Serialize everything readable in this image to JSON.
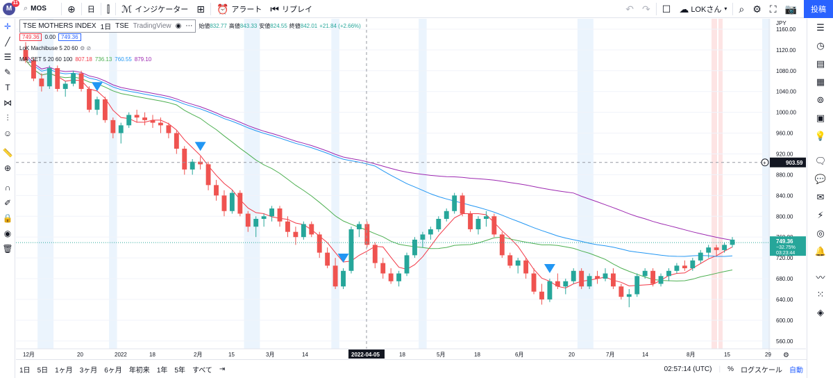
{
  "topbar": {
    "logo_letter": "M",
    "logo_badge": "11",
    "symbol": "MOS",
    "add_icon": "plus-circle-icon",
    "interval": "日",
    "compare_icon": "candles-icon",
    "indicators_label": "インジケーター",
    "layout_icon": "grid-icon",
    "alert_label": "アラート",
    "replay_label": "リプレイ",
    "layout_name": "LOKさん",
    "post_label": "投稿"
  },
  "legend": {
    "title": "TSE MOTHERS INDEX",
    "interval": "1日",
    "exchange": "TSE",
    "source": "TradingView",
    "ohlc": [
      {
        "label": "始値",
        "value": "832.77"
      },
      {
        "label": "高値",
        "value": "843.33"
      },
      {
        "label": "安値",
        "value": "824.55"
      },
      {
        "label": "終値",
        "value": "842.01"
      },
      {
        "label": "",
        "value": "+21.84 (+2.66%)"
      }
    ],
    "sell_price": "749.36",
    "spread": "0.00",
    "buy_price": "749.36",
    "indicator1": "LoK Machibuse 5 20 60",
    "ma_label": "MA_SET 5 20 60 100",
    "ma_values": [
      {
        "value": "807.18",
        "color": "#f23645"
      },
      {
        "value": "736.13",
        "color": "#4caf50"
      },
      {
        "value": "760.55",
        "color": "#2196f3"
      },
      {
        "value": "879.10",
        "color": "#9c27b0"
      }
    ]
  },
  "chart_data": {
    "type": "candlestick",
    "currency": "JPY",
    "y_ticks": [
      1160,
      1120,
      1080,
      1040,
      1000,
      960,
      920,
      880,
      840,
      800,
      760,
      720,
      680,
      640,
      600,
      560
    ],
    "x_ticks": [
      "12月",
      "20",
      "2022",
      "18",
      "2月",
      "15",
      "3月",
      "14",
      "2022-04-05",
      "18",
      "5月",
      "18",
      "6月",
      "20",
      "7月",
      "14",
      "8月",
      "15",
      "29"
    ],
    "crosshair_price": "903.59",
    "crosshair_date": "2022-04-05",
    "last_price": "749.36",
    "last_change": "−32.75%",
    "last_countdown": "03:23:44",
    "colors": {
      "up": "#26a69a",
      "down": "#ef5350",
      "ma5": "#f23645",
      "ma20": "#4caf50",
      "ma60": "#2196f3",
      "ma100": "#9c27b0",
      "marker": "#2196f3"
    },
    "candles": [
      [
        1120,
        1135,
        1095,
        1100
      ],
      [
        1100,
        1105,
        1060,
        1065
      ],
      [
        1065,
        1075,
        1040,
        1050
      ],
      [
        1050,
        1090,
        1045,
        1085
      ],
      [
        1085,
        1090,
        1040,
        1045
      ],
      [
        1045,
        1060,
        1030,
        1055
      ],
      [
        1055,
        1080,
        1050,
        1075
      ],
      [
        1075,
        1080,
        1040,
        1045
      ],
      [
        1045,
        1050,
        1000,
        1005
      ],
      [
        1005,
        1030,
        995,
        1025
      ],
      [
        1025,
        1030,
        980,
        985
      ],
      [
        985,
        990,
        950,
        960
      ],
      [
        960,
        980,
        940,
        975
      ],
      [
        975,
        1000,
        970,
        995
      ],
      [
        995,
        1005,
        980,
        990
      ],
      [
        990,
        1000,
        975,
        985
      ],
      [
        985,
        995,
        970,
        980
      ],
      [
        980,
        990,
        960,
        975
      ],
      [
        975,
        980,
        950,
        960
      ],
      [
        960,
        965,
        920,
        930
      ],
      [
        930,
        935,
        880,
        890
      ],
      [
        890,
        910,
        880,
        905
      ],
      [
        905,
        915,
        890,
        900
      ],
      [
        900,
        905,
        850,
        860
      ],
      [
        860,
        870,
        830,
        840
      ],
      [
        840,
        850,
        800,
        810
      ],
      [
        810,
        850,
        805,
        845
      ],
      [
        845,
        850,
        800,
        805
      ],
      [
        805,
        810,
        770,
        780
      ],
      [
        780,
        800,
        760,
        795
      ],
      [
        795,
        805,
        780,
        800
      ],
      [
        800,
        820,
        790,
        815
      ],
      [
        815,
        820,
        780,
        790
      ],
      [
        790,
        800,
        760,
        770
      ],
      [
        770,
        780,
        745,
        760
      ],
      [
        760,
        790,
        755,
        785
      ],
      [
        785,
        790,
        760,
        765
      ],
      [
        765,
        770,
        720,
        730
      ],
      [
        730,
        740,
        700,
        705
      ],
      [
        705,
        720,
        660,
        665
      ],
      [
        665,
        700,
        660,
        695
      ],
      [
        695,
        780,
        690,
        775
      ],
      [
        775,
        790,
        760,
        785
      ],
      [
        785,
        790,
        740,
        745
      ],
      [
        745,
        750,
        700,
        710
      ],
      [
        710,
        720,
        680,
        690
      ],
      [
        690,
        700,
        670,
        675
      ],
      [
        675,
        695,
        665,
        690
      ],
      [
        690,
        730,
        685,
        725
      ],
      [
        725,
        760,
        720,
        755
      ],
      [
        755,
        770,
        740,
        765
      ],
      [
        765,
        780,
        755,
        775
      ],
      [
        775,
        800,
        770,
        795
      ],
      [
        795,
        815,
        790,
        810
      ],
      [
        810,
        845,
        805,
        840
      ],
      [
        840,
        845,
        800,
        805
      ],
      [
        805,
        810,
        770,
        775
      ],
      [
        775,
        800,
        765,
        795
      ],
      [
        795,
        810,
        780,
        800
      ],
      [
        800,
        805,
        760,
        765
      ],
      [
        765,
        770,
        720,
        725
      ],
      [
        725,
        730,
        700,
        705
      ],
      [
        705,
        720,
        690,
        715
      ],
      [
        715,
        720,
        680,
        690
      ],
      [
        690,
        700,
        650,
        655
      ],
      [
        655,
        670,
        630,
        640
      ],
      [
        640,
        680,
        635,
        675
      ],
      [
        675,
        690,
        660,
        665
      ],
      [
        665,
        680,
        650,
        675
      ],
      [
        675,
        700,
        670,
        695
      ],
      [
        695,
        700,
        660,
        665
      ],
      [
        665,
        690,
        660,
        685
      ],
      [
        685,
        695,
        670,
        680
      ],
      [
        680,
        700,
        675,
        690
      ],
      [
        690,
        700,
        660,
        665
      ],
      [
        665,
        670,
        640,
        645
      ],
      [
        645,
        660,
        625,
        650
      ],
      [
        650,
        690,
        645,
        685
      ],
      [
        685,
        700,
        680,
        695
      ],
      [
        695,
        700,
        665,
        670
      ],
      [
        670,
        690,
        665,
        685
      ],
      [
        685,
        700,
        675,
        695
      ],
      [
        695,
        710,
        690,
        705
      ],
      [
        705,
        715,
        695,
        700
      ],
      [
        700,
        720,
        695,
        715
      ],
      [
        715,
        735,
        710,
        730
      ],
      [
        730,
        745,
        720,
        740
      ],
      [
        740,
        745,
        725,
        735
      ],
      [
        735,
        750,
        730,
        745
      ],
      [
        745,
        760,
        740,
        755
      ]
    ],
    "markers_index": [
      9,
      22,
      40,
      66
    ]
  },
  "bottombar": {
    "ranges": [
      "1日",
      "5日",
      "1ヶ月",
      "3ヶ月",
      "6ヶ月",
      "年初来",
      "1年",
      "5年",
      "すべて"
    ],
    "time": "02:57:14 (UTC)",
    "percent": "%",
    "log": "ログスケール",
    "auto": "自動"
  }
}
